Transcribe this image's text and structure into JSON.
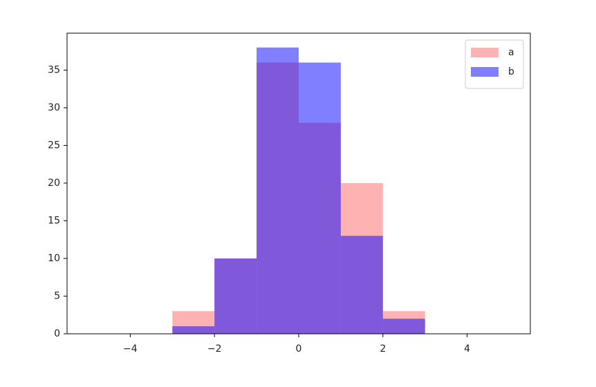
{
  "chart_data": {
    "type": "histogram",
    "bins": [
      -5,
      -4,
      -3,
      -2,
      -1,
      0,
      1,
      2,
      3,
      4,
      5
    ],
    "series": [
      {
        "name": "a",
        "color": "#ff0000",
        "alpha": 0.3,
        "values": [
          0,
          0,
          3,
          10,
          36,
          28,
          20,
          3,
          0,
          0
        ]
      },
      {
        "name": "b",
        "color": "#0000ff",
        "alpha": 0.5,
        "values": [
          0,
          0,
          1,
          10,
          38,
          36,
          13,
          2,
          0,
          0
        ]
      }
    ],
    "xlim": [
      -5.5,
      5.5
    ],
    "xticks": [
      {
        "value": -4,
        "label": "−4"
      },
      {
        "value": -2,
        "label": "−2"
      },
      0,
      2,
      4
    ],
    "ylim": [
      0,
      39.9
    ],
    "yticks": [
      0,
      5,
      10,
      15,
      20,
      25,
      30,
      35
    ],
    "legend": "upper right"
  }
}
